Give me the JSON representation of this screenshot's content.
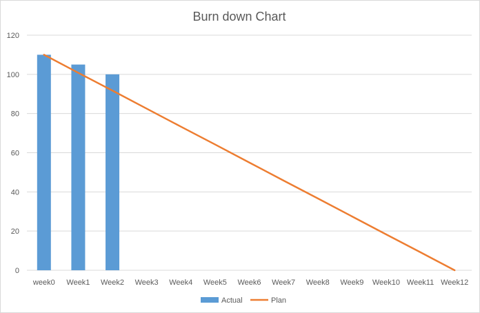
{
  "chart_data": {
    "type": "bar",
    "title": "Burn down Chart",
    "xlabel": "",
    "ylabel": "",
    "categories": [
      "week0",
      "Week1",
      "Week2",
      "Week3",
      "Week4",
      "Week5",
      "Week6",
      "Week7",
      "Week8",
      "Week9",
      "Week10",
      "Week11",
      "Week12"
    ],
    "series": [
      {
        "name": "Actual",
        "type": "bar",
        "color": "#5B9BD5",
        "values": [
          110,
          105,
          100,
          null,
          null,
          null,
          null,
          null,
          null,
          null,
          null,
          null,
          null
        ]
      },
      {
        "name": "Plan",
        "type": "line",
        "color": "#ED7D31",
        "values": [
          110,
          100.8,
          91.7,
          82.5,
          73.3,
          64.2,
          55,
          45.8,
          36.7,
          27.5,
          18.3,
          9.2,
          0
        ]
      }
    ],
    "ylim": [
      0,
      120
    ],
    "yticks": [
      0,
      20,
      40,
      60,
      80,
      100,
      120
    ],
    "grid": true,
    "legend": "bottom"
  }
}
